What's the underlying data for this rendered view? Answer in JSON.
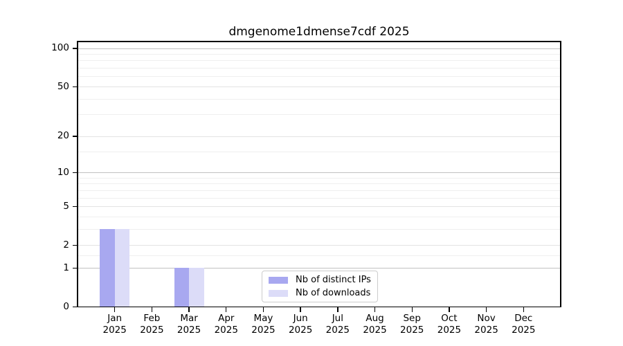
{
  "chart_data": {
    "type": "bar",
    "title": "dmgenome1dmense7cdf 2025",
    "months": [
      "Jan",
      "Feb",
      "Mar",
      "Apr",
      "May",
      "Jun",
      "Jul",
      "Aug",
      "Sep",
      "Oct",
      "Nov",
      "Dec"
    ],
    "year": "2025",
    "categories": [
      "Jan 2025",
      "Feb 2025",
      "Mar 2025",
      "Apr 2025",
      "May 2025",
      "Jun 2025",
      "Jul 2025",
      "Aug 2025",
      "Sep 2025",
      "Oct 2025",
      "Nov 2025",
      "Dec 2025"
    ],
    "series": [
      {
        "name": "Nb of distinct IPs",
        "color": "#a8a8f0",
        "values": [
          3,
          0,
          1,
          0,
          0,
          0,
          0,
          0,
          0,
          0,
          0,
          0
        ]
      },
      {
        "name": "Nb of downloads",
        "color": "#dcdcf8",
        "values": [
          3,
          0,
          1,
          0,
          0,
          0,
          0,
          0,
          0,
          0,
          0,
          0
        ]
      }
    ],
    "xlabel": "",
    "ylabel": "",
    "yscale": "log1p",
    "ylim": [
      0,
      113
    ],
    "y_ticks": [
      0,
      1,
      2,
      5,
      10,
      20,
      50,
      100
    ],
    "y_decade_ticks": [
      1,
      10,
      100
    ],
    "y_minor_gridlines": [
      1.5,
      3,
      4,
      6,
      7,
      8,
      9,
      15,
      30,
      40,
      60,
      70,
      80,
      90
    ],
    "grid": "horizontal",
    "legend_position": "inside bottom-center"
  },
  "colors": {
    "decade_grid": "#c0c0c0",
    "major_grid": "#e3e3e3",
    "minor_grid": "#efefef",
    "spine": "#000000",
    "text": "#000000",
    "background": "#ffffff"
  }
}
